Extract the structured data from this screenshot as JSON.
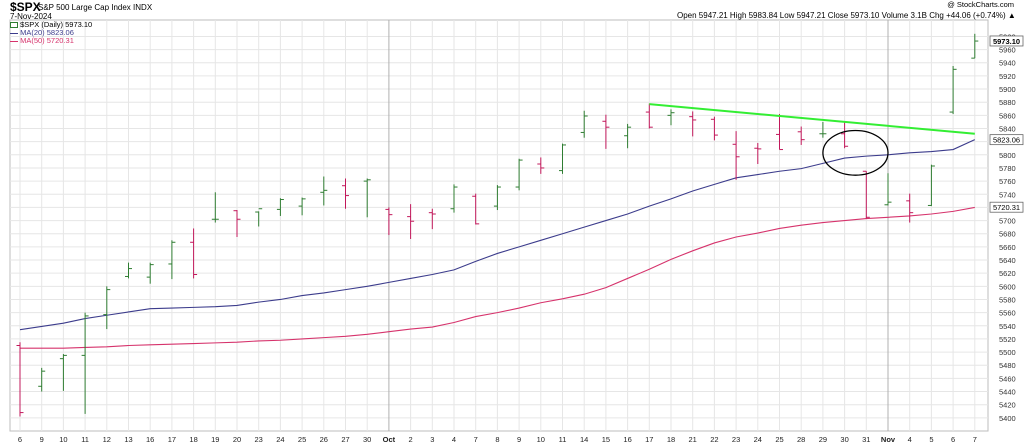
{
  "header": {
    "ticker": "$SPX",
    "description": "S&P 500 Large Cap Index",
    "exchange": "INDX",
    "date": "7-Nov-2024",
    "ohlc_text": "Open 5947.21  High 5983.84  Low 5947.21  Close 5973.10  Volume 3.1B  Chg +44.06 (+0.74%) ▲",
    "copyright": "@ StockCharts.com"
  },
  "legend": {
    "price": "$SPX (Daily) 5973.10",
    "ma20": "MA(20) 5823.06",
    "ma50": "MA(50) 5720.31"
  },
  "colors": {
    "up": "#2f7d32",
    "down": "#c2185b",
    "ma20": "#3c3c8c",
    "ma50": "#d6336c",
    "trendline": "#33ee33",
    "grid": "#e6e6e6",
    "circle": "#000000"
  },
  "chart_data": {
    "type": "ohlc",
    "yscale": "linear",
    "ylim": [
      5380,
      6005
    ],
    "y_ticks": [
      5400,
      5420,
      5440,
      5460,
      5480,
      5500,
      5520,
      5540,
      5560,
      5580,
      5600,
      5620,
      5640,
      5660,
      5680,
      5700,
      5720,
      5740,
      5760,
      5780,
      5800,
      5820,
      5840,
      5860,
      5880,
      5900,
      5920,
      5940,
      5960,
      5980
    ],
    "x_labels": [
      "6",
      "9",
      "10",
      "11",
      "12",
      "13",
      "16",
      "17",
      "18",
      "19",
      "20",
      "23",
      "24",
      "25",
      "26",
      "27",
      "30",
      "Oct",
      "2",
      "3",
      "4",
      "7",
      "8",
      "9",
      "10",
      "11",
      "14",
      "15",
      "16",
      "17",
      "18",
      "21",
      "22",
      "23",
      "24",
      "25",
      "28",
      "29",
      "30",
      "31",
      "Nov",
      "4",
      "5",
      "6",
      "7"
    ],
    "bars": [
      {
        "o": 5510,
        "h": 5515,
        "l": 5402,
        "c": 5408
      },
      {
        "o": 5448,
        "h": 5476,
        "l": 5440,
        "c": 5471
      },
      {
        "o": 5490,
        "h": 5497,
        "l": 5441,
        "c": 5495
      },
      {
        "o": 5495,
        "h": 5560,
        "l": 5406,
        "c": 5555
      },
      {
        "o": 5557,
        "h": 5600,
        "l": 5535,
        "c": 5595
      },
      {
        "o": 5615,
        "h": 5636,
        "l": 5612,
        "c": 5627
      },
      {
        "o": 5614,
        "h": 5636,
        "l": 5604,
        "c": 5633
      },
      {
        "o": 5634,
        "h": 5670,
        "l": 5611,
        "c": 5667
      },
      {
        "o": 5667,
        "h": 5688,
        "l": 5612,
        "c": 5618
      },
      {
        "o": 5702,
        "h": 5743,
        "l": 5697,
        "c": 5702
      },
      {
        "o": 5715,
        "h": 5716,
        "l": 5675,
        "c": 5702
      },
      {
        "o": 5713,
        "h": 5714,
        "l": 5691,
        "c": 5718
      },
      {
        "o": 5717,
        "h": 5734,
        "l": 5707,
        "c": 5732
      },
      {
        "o": 5722,
        "h": 5735,
        "l": 5708,
        "c": 5733
      },
      {
        "o": 5743,
        "h": 5767,
        "l": 5723,
        "c": 5746
      },
      {
        "o": 5753,
        "h": 5764,
        "l": 5718,
        "c": 5738
      },
      {
        "o": 5760,
        "h": 5764,
        "l": 5705,
        "c": 5762
      },
      {
        "o": 5717,
        "h": 5720,
        "l": 5678,
        "c": 5709
      },
      {
        "o": 5706,
        "h": 5725,
        "l": 5672,
        "c": 5699
      },
      {
        "o": 5712,
        "h": 5718,
        "l": 5687,
        "c": 5710
      },
      {
        "o": 5718,
        "h": 5755,
        "l": 5712,
        "c": 5751
      },
      {
        "o": 5737,
        "h": 5741,
        "l": 5694,
        "c": 5695
      },
      {
        "o": 5722,
        "h": 5754,
        "l": 5716,
        "c": 5751
      },
      {
        "o": 5751,
        "h": 5794,
        "l": 5746,
        "c": 5792
      },
      {
        "o": 5786,
        "h": 5796,
        "l": 5771,
        "c": 5780
      },
      {
        "o": 5776,
        "h": 5817,
        "l": 5771,
        "c": 5815
      },
      {
        "o": 5834,
        "h": 5867,
        "l": 5826,
        "c": 5859
      },
      {
        "o": 5851,
        "h": 5861,
        "l": 5809,
        "c": 5842
      },
      {
        "o": 5829,
        "h": 5847,
        "l": 5810,
        "c": 5842
      },
      {
        "o": 5865,
        "h": 5878,
        "l": 5840,
        "c": 5842
      },
      {
        "o": 5860,
        "h": 5869,
        "l": 5845,
        "c": 5864
      },
      {
        "o": 5858,
        "h": 5866,
        "l": 5828,
        "c": 5853
      },
      {
        "o": 5854,
        "h": 5858,
        "l": 5822,
        "c": 5830
      },
      {
        "o": 5816,
        "h": 5836,
        "l": 5762,
        "c": 5797
      },
      {
        "o": 5810,
        "h": 5818,
        "l": 5786,
        "c": 5809
      },
      {
        "o": 5831,
        "h": 5862,
        "l": 5808,
        "c": 5808
      },
      {
        "o": 5835,
        "h": 5843,
        "l": 5815,
        "c": 5823
      },
      {
        "o": 5832,
        "h": 5850,
        "l": 5826,
        "c": 5832
      },
      {
        "o": 5832,
        "h": 5851,
        "l": 5810,
        "c": 5813
      },
      {
        "o": 5775,
        "h": 5775,
        "l": 5703,
        "c": 5705
      },
      {
        "o": 5724,
        "h": 5772,
        "l": 5723,
        "c": 5728
      },
      {
        "o": 5730,
        "h": 5741,
        "l": 5697,
        "c": 5712
      },
      {
        "o": 5723,
        "h": 5785,
        "l": 5722,
        "c": 5783
      },
      {
        "o": 5865,
        "h": 5935,
        "l": 5862,
        "c": 5930
      },
      {
        "o": 5947,
        "h": 5984,
        "l": 5947,
        "c": 5973
      }
    ],
    "ma20": [
      5534,
      5539,
      5544,
      5551,
      5556,
      5561,
      5566,
      5567,
      5568,
      5569,
      5571,
      5576,
      5580,
      5586,
      5590,
      5595,
      5600,
      5606,
      5612,
      5618,
      5625,
      5638,
      5650,
      5660,
      5670,
      5680,
      5690,
      5700,
      5710,
      5722,
      5733,
      5745,
      5755,
      5765,
      5770,
      5775,
      5779,
      5787,
      5795,
      5798,
      5800,
      5803,
      5805,
      5808,
      5823
    ],
    "ma50": [
      5506,
      5506,
      5506,
      5507,
      5508,
      5510,
      5511,
      5512,
      5513,
      5514,
      5515,
      5517,
      5518,
      5520,
      5522,
      5524,
      5527,
      5531,
      5535,
      5538,
      5545,
      5554,
      5560,
      5567,
      5575,
      5581,
      5588,
      5598,
      5612,
      5626,
      5641,
      5654,
      5666,
      5675,
      5681,
      5688,
      5693,
      5697,
      5700,
      5703,
      5705,
      5707,
      5710,
      5714,
      5720
    ],
    "last_labels": [
      {
        "value": 5973.1,
        "text": "5973.10",
        "bold": true
      },
      {
        "value": 5823.06,
        "text": "5823.06",
        "bold": false
      },
      {
        "value": 5720.31,
        "text": "5720.31",
        "bold": false
      }
    ],
    "trendline": {
      "x0_index": 29,
      "y0": 5877,
      "x1_index": 44,
      "y1": 5832
    },
    "circle_annotation": {
      "center_index": 38.5,
      "center_value": 5803,
      "rx_bars": 1.5,
      "ry_value": 34
    }
  }
}
